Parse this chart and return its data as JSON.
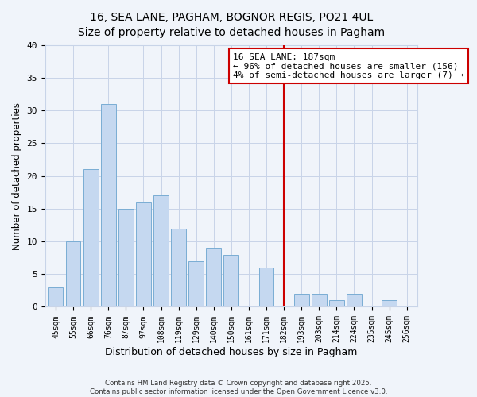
{
  "title": "16, SEA LANE, PAGHAM, BOGNOR REGIS, PO21 4UL",
  "subtitle": "Size of property relative to detached houses in Pagham",
  "xlabel": "Distribution of detached houses by size in Pagham",
  "ylabel": "Number of detached properties",
  "bar_labels": [
    "45sqm",
    "55sqm",
    "66sqm",
    "76sqm",
    "87sqm",
    "97sqm",
    "108sqm",
    "119sqm",
    "129sqm",
    "140sqm",
    "150sqm",
    "161sqm",
    "171sqm",
    "182sqm",
    "193sqm",
    "203sqm",
    "214sqm",
    "224sqm",
    "235sqm",
    "245sqm",
    "256sqm"
  ],
  "bar_values": [
    3,
    10,
    21,
    31,
    15,
    16,
    17,
    12,
    7,
    9,
    8,
    0,
    6,
    0,
    2,
    2,
    1,
    2,
    0,
    1,
    0
  ],
  "bar_color": "#c5d8f0",
  "bar_edge_color": "#7aadd4",
  "ylim": [
    0,
    40
  ],
  "yticks": [
    0,
    5,
    10,
    15,
    20,
    25,
    30,
    35,
    40
  ],
  "vline_x_index": 13,
  "vline_color": "#cc0000",
  "annotation_title": "16 SEA LANE: 187sqm",
  "annotation_line1": "← 96% of detached houses are smaller (156)",
  "annotation_line2": "4% of semi-detached houses are larger (7) →",
  "annotation_box_color": "#ffffff",
  "annotation_box_edge": "#cc0000",
  "footer1": "Contains HM Land Registry data © Crown copyright and database right 2025.",
  "footer2": "Contains public sector information licensed under the Open Government Licence v3.0.",
  "bg_color": "#f0f4fa",
  "grid_color": "#c8d4e8"
}
